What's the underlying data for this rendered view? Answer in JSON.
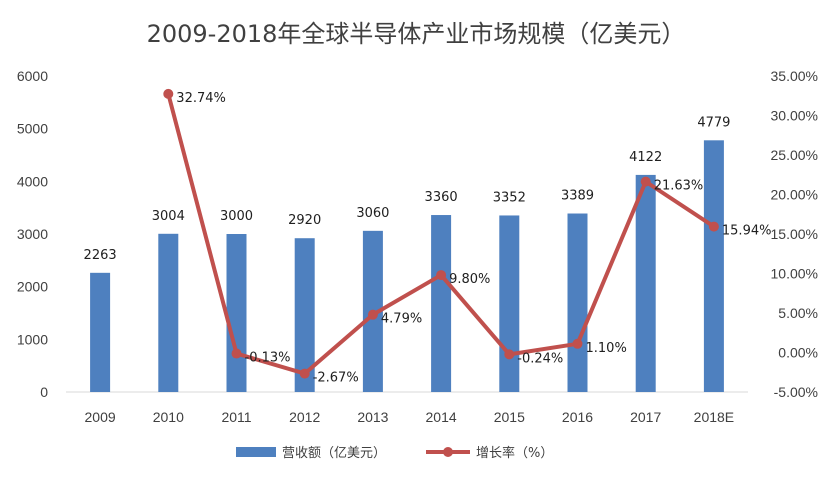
{
  "chart_data": {
    "type": "bar+line",
    "title": "2009-2018年全球半导体产业市场规模（亿美元）",
    "categories": [
      "2009",
      "2010",
      "2011",
      "2012",
      "2013",
      "2014",
      "2015",
      "2016",
      "2017",
      "2018E"
    ],
    "series": [
      {
        "name": "营收额（亿美元）",
        "type": "bar",
        "axis": "left",
        "color": "#4e80bf",
        "values": [
          2263,
          3004,
          3000,
          2920,
          3060,
          3360,
          3352,
          3389,
          4122,
          4779
        ],
        "labels": [
          "2263",
          "3004",
          "3000",
          "2920",
          "3060",
          "3360",
          "3352",
          "3389",
          "4122",
          "4779"
        ]
      },
      {
        "name": "增长率（%）",
        "type": "line",
        "axis": "right",
        "color": "#c0504d",
        "values": [
          null,
          32.74,
          -0.13,
          -2.67,
          4.79,
          9.8,
          -0.24,
          1.1,
          21.63,
          15.94
        ],
        "labels": [
          "",
          "32.74%",
          "-0.13%",
          "-2.67%",
          "4.79%",
          "9.80%",
          "-0.24%",
          "1.10%",
          "21.63%",
          "15.94%"
        ]
      }
    ],
    "y_left": {
      "ylim": [
        0,
        6000
      ],
      "ticks": [
        "0",
        "1000",
        "2000",
        "3000",
        "4000",
        "5000",
        "6000"
      ]
    },
    "y_right": {
      "ylim": [
        -5,
        35
      ],
      "ticks": [
        "-5.00%",
        "0.00%",
        "5.00%",
        "10.00%",
        "15.00%",
        "20.00%",
        "25.00%",
        "30.00%",
        "35.00%"
      ]
    },
    "legend_position": "bottom",
    "grid": false
  }
}
